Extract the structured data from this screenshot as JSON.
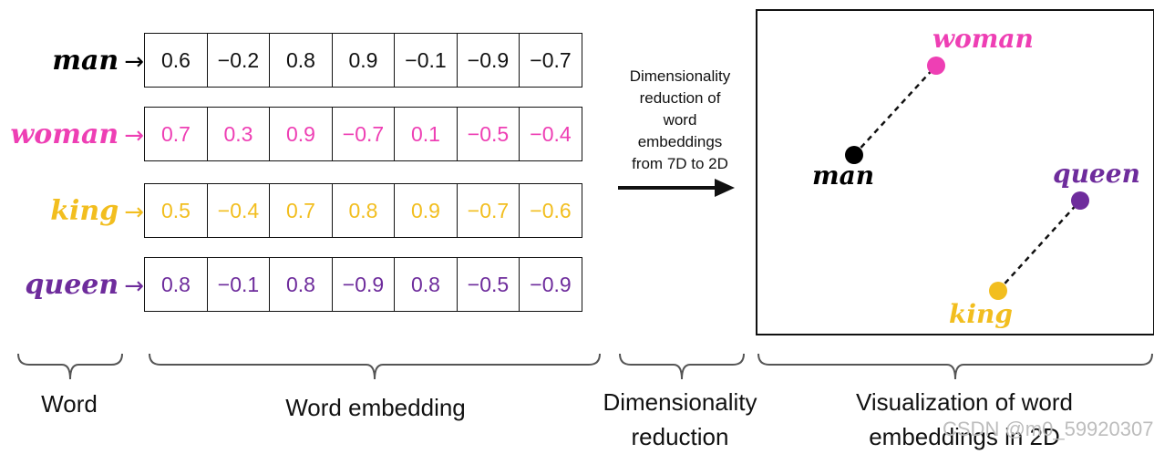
{
  "colors": {
    "man": "#000000",
    "woman": "#ee3fb4",
    "king": "#f2be1f",
    "queen": "#6e2c9c"
  },
  "rows": [
    {
      "word": "man",
      "color_key": "man",
      "values": [
        "0.6",
        "−0.2",
        "0.8",
        "0.9",
        "−0.1",
        "−0.9",
        "−0.7"
      ]
    },
    {
      "word": "woman",
      "color_key": "woman",
      "values": [
        "0.7",
        "0.3",
        "0.9",
        "−0.7",
        "0.1",
        "−0.5",
        "−0.4"
      ]
    },
    {
      "word": "king",
      "color_key": "king",
      "values": [
        "0.5",
        "−0.4",
        "0.7",
        "0.8",
        "0.9",
        "−0.7",
        "−0.6"
      ]
    },
    {
      "word": "queen",
      "color_key": "queen",
      "values": [
        "0.8",
        "−0.1",
        "0.8",
        "−0.9",
        "0.8",
        "−0.5",
        "−0.9"
      ]
    }
  ],
  "arrow_glyph": "→",
  "reduction_text": [
    "Dimensionality",
    "reduction of",
    "word",
    "embeddings",
    "from 7D to 2D"
  ],
  "viz": {
    "labels": {
      "woman": "woman",
      "man": "man",
      "queen": "queen",
      "king": "king"
    }
  },
  "bottom": {
    "word": "Word",
    "embedding": "Word embedding",
    "dimensionality": "Dimensionality reduction",
    "visualization": "Visualization of word embeddings in 2D"
  },
  "watermark": "CSDN @m0_59920307"
}
